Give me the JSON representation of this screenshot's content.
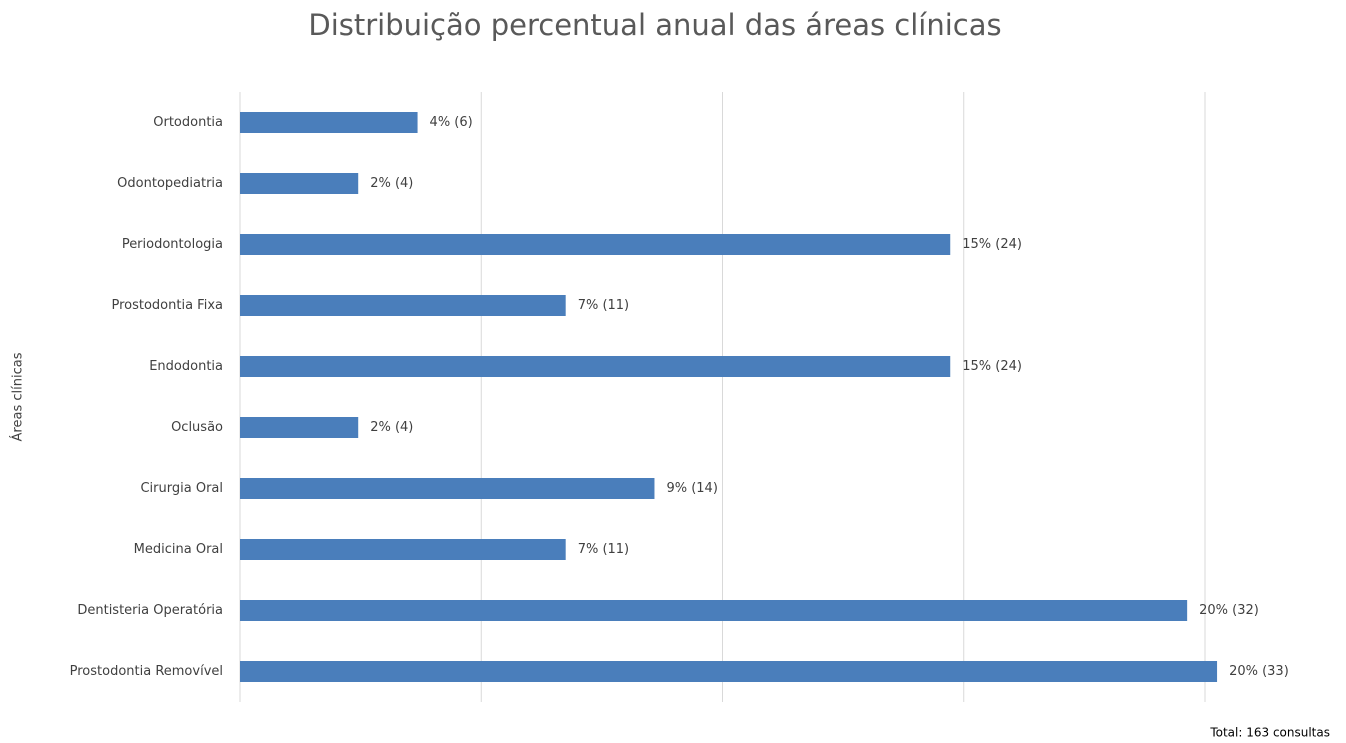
{
  "chart_data": {
    "type": "barh",
    "title": "Distribuição percentual anual das áreas clínicas",
    "y_label": "Áreas clínicas",
    "annotation": "Total: 163 consultas",
    "categories": [
      "Ortodontia",
      "Odontopediatria",
      "Periodontologia",
      "Prostodontia Fixa",
      "Endodontia",
      "Oclusão",
      "Cirurgia Oral",
      "Medicina Oral",
      "Dentisteria Operatória",
      "Prostodontia Removível"
    ],
    "values": [
      3.68,
      2.45,
      14.72,
      6.75,
      14.72,
      2.45,
      8.59,
      6.75,
      19.63,
      20.25
    ],
    "value_labels": [
      "4% (6)",
      "2% (4)",
      "15% (24)",
      "7% (11)",
      "15% (24)",
      "2% (4)",
      "9% (14)",
      "7% (11)",
      "20% (32)",
      "20% (33)"
    ],
    "color": "#4a7ebb",
    "xlim": [
      0,
      22
    ],
    "xticks": [
      0,
      5,
      10,
      15,
      20
    ],
    "grid": true
  }
}
